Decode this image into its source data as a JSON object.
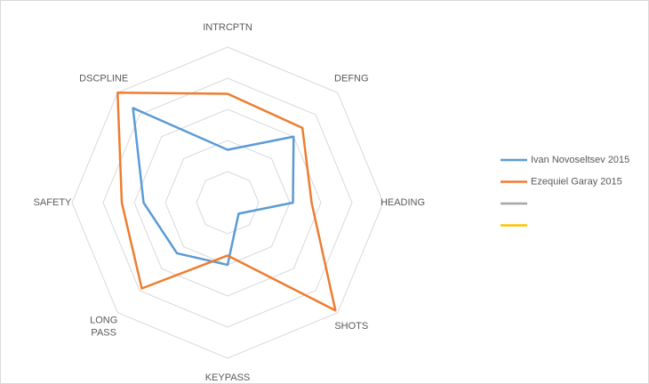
{
  "chart_data": {
    "type": "radar",
    "categories": [
      "INTRCPTN",
      "DEFNG",
      "HEADING",
      "SHOTS",
      "KEYPASS",
      "LONG PASS",
      "SAFETY",
      "DSCPLINE"
    ],
    "ylim": [
      0,
      5
    ],
    "yticks": [
      1,
      2,
      3,
      4,
      5
    ],
    "grid": true,
    "legend": "right",
    "series": [
      {
        "name": "Ivan Novoseltsev 2015",
        "color": "#5b9bd5",
        "values": [
          1.7,
          3.0,
          2.1,
          0.5,
          2.0,
          2.3,
          2.7,
          4.3
        ]
      },
      {
        "name": "Ezequiel Garay 2015",
        "color": "#ed7d31",
        "values": [
          3.5,
          3.4,
          2.7,
          4.9,
          1.7,
          3.9,
          3.4,
          5.0
        ]
      },
      {
        "color": "#a5a5a5",
        "values": [
          null,
          null,
          null,
          null,
          null,
          null,
          null,
          null
        ]
      },
      {
        "color": "#ffc000",
        "values": [
          null,
          null,
          null,
          null,
          null,
          null,
          null,
          null
        ]
      }
    ]
  }
}
